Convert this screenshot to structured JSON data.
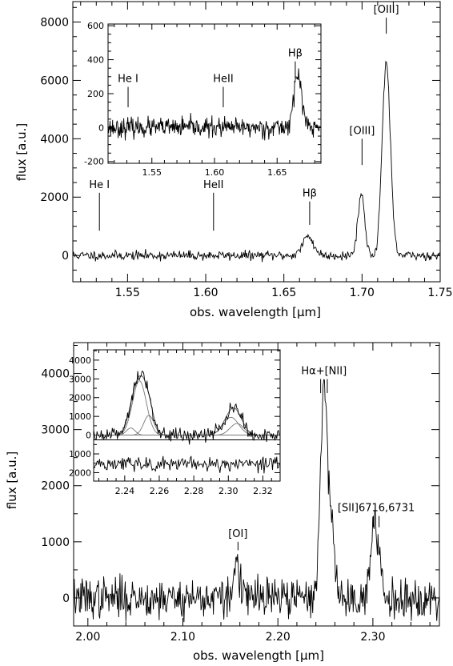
{
  "chart_data": [
    {
      "type": "line",
      "panel": "top",
      "xlabel": "obs. wavelength [μm]",
      "ylabel": "flux [a.u.]",
      "xlim": [
        1.515,
        1.75
      ],
      "ylim": [
        -900,
        8700
      ],
      "xticks": [
        1.55,
        1.6,
        1.65,
        1.7,
        1.75
      ],
      "xtick_labels": [
        "1.55",
        "1.60",
        "1.65",
        "1.70",
        "1.75"
      ],
      "yticks": [
        0,
        2000,
        4000,
        6000,
        8000
      ],
      "ytick_labels": [
        "0",
        "2000",
        "4000",
        "6000",
        "8000"
      ],
      "noise_sigma": 80,
      "features": [
        {
          "center": 1.6655,
          "amp": 650,
          "sigma": 0.0035
        },
        {
          "center": 1.6995,
          "amp": 2100,
          "sigma": 0.0022
        },
        {
          "center": 1.7155,
          "amp": 6650,
          "sigma": 0.0026
        }
      ],
      "annotations": [
        {
          "text": "He I",
          "x": 1.532,
          "y_top": 2150,
          "y_bot": 850
        },
        {
          "text": "HeII",
          "x": 1.605,
          "y_top": 2150,
          "y_bot": 850
        },
        {
          "text": "Hβ",
          "x": 1.6665,
          "y_top": 1850,
          "y_bot": 1050
        },
        {
          "text": "[OIII]",
          "x": 1.7,
          "y_top": 4000,
          "y_bot": 3100
        },
        {
          "text": "[OIII]",
          "x": 1.7155,
          "y_top": 8150,
          "y_bot": 7600
        }
      ]
    },
    {
      "type": "line",
      "panel": "top-inset",
      "xlim": [
        1.515,
        1.685
      ],
      "ylim": [
        -210,
        610
      ],
      "xticks": [
        1.55,
        1.6,
        1.65
      ],
      "xtick_labels": [
        "1.55",
        "1.60",
        "1.65"
      ],
      "yticks": [
        -200,
        0,
        200,
        400,
        600
      ],
      "ytick_labels": [
        "-200",
        "0",
        "200",
        "400",
        "600"
      ],
      "noise_sigma": 28,
      "features": [
        {
          "center": 1.6665,
          "amp": 310,
          "sigma": 0.0032
        }
      ],
      "annotations": [
        {
          "text": "He I",
          "x": 1.531,
          "y_top": 240,
          "y_bot": 120
        },
        {
          "text": "HeII",
          "x": 1.607,
          "y_top": 240,
          "y_bot": 120
        },
        {
          "text": "Hβ",
          "x": 1.6645,
          "y_top": 390,
          "y_bot": 290
        }
      ]
    },
    {
      "type": "line",
      "panel": "bottom",
      "xlabel": "obs. wavelength [μm]",
      "ylabel": "flux [a.u.]",
      "xlim": [
        1.985,
        2.37
      ],
      "ylim": [
        -500,
        4550
      ],
      "xticks": [
        2.0,
        2.1,
        2.2,
        2.3
      ],
      "xtick_labels": [
        "2.00",
        "2.10",
        "2.20",
        "2.30"
      ],
      "yticks": [
        0,
        1000,
        2000,
        3000,
        4000
      ],
      "ytick_labels": [
        "0",
        "1000",
        "2000",
        "3000",
        "4000"
      ],
      "noise_sigma": 180,
      "features": [
        {
          "center": 2.157,
          "amp": 750,
          "sigma": 0.0025
        },
        {
          "center": 2.2485,
          "amp": 3600,
          "sigma": 0.0038
        },
        {
          "center": 2.2565,
          "amp": 1200,
          "sigma": 0.0032
        },
        {
          "center": 2.3005,
          "amp": 1050,
          "sigma": 0.0035
        },
        {
          "center": 2.3065,
          "amp": 650,
          "sigma": 0.003
        }
      ],
      "annotations": [
        {
          "text": "[OI]",
          "x": 2.158,
          "y_top": 1000,
          "y_bot": 850
        },
        {
          "text": "Hα+[NII]",
          "x": 2.2485,
          "y_top": 3900,
          "y_bot": 3650,
          "double": true,
          "gap": 0.007
        },
        {
          "text": "[SII]6716,6731",
          "x": 2.3035,
          "y_top": 1460,
          "y_bot": 1260,
          "double": true,
          "gap": 0.006
        }
      ]
    },
    {
      "type": "line",
      "panel": "bottom-inset",
      "xlim": [
        2.222,
        2.33
      ],
      "ylim": [
        -2450,
        4550
      ],
      "xticks": [
        2.24,
        2.26,
        2.28,
        2.3,
        2.32
      ],
      "xtick_labels": [
        "2.24",
        "2.26",
        "2.28",
        "2.30",
        "2.32"
      ],
      "yticks": [
        4000,
        3000,
        2000,
        1000,
        0,
        -1000,
        -2000
      ],
      "ytick_labels": [
        "4000",
        "3000",
        "2000",
        "1000",
        "0",
        "1000",
        "2000"
      ],
      "residual_baseline": -1550,
      "separator_y": -250,
      "noise_sigma": 200,
      "components": [
        {
          "center": 2.2485,
          "amp": 2900,
          "sigma": 0.004
        },
        {
          "center": 2.254,
          "amp": 1050,
          "sigma": 0.003
        },
        {
          "center": 2.2435,
          "amp": 380,
          "sigma": 0.0025
        },
        {
          "center": 2.3015,
          "amp": 950,
          "sigma": 0.0045
        },
        {
          "center": 2.305,
          "amp": 620,
          "sigma": 0.004
        }
      ]
    }
  ]
}
